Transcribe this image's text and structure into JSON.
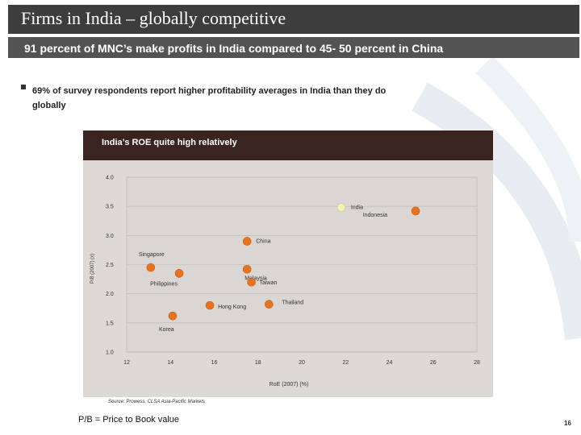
{
  "slide": {
    "title": "Firms in India – globally competitive",
    "subtitle": "91 percent of MNC’s make profits in India compared to 45- 50 percent in China",
    "bullet": "69% of survey respondents report higher profitability averages in India than they do globally",
    "footnote": "P/B = Price to Book value",
    "page_number": "16",
    "source": "Source: Prowess, CLSA Asia-Pacific Markets"
  },
  "colors": {
    "marker": "#e8731f",
    "marker_highlight": "#f3f0b8",
    "header_bg": "#3a2420",
    "panel_bg": "#dcd9d6"
  },
  "chart_data": {
    "type": "scatter",
    "title": "India’s ROE quite high relatively",
    "xlabel": "RoE (2007) (%)",
    "ylabel": "P/B (2007) (x)",
    "xlim": [
      12,
      28
    ],
    "ylim": [
      1.0,
      4.0
    ],
    "x_ticks": [
      "12",
      "14",
      "16",
      "18",
      "20",
      "22",
      "24",
      "26",
      "28"
    ],
    "y_ticks": [
      "1.0",
      "1.5",
      "2.0",
      "2.5",
      "3.0",
      "3.5",
      "4.0"
    ],
    "points": [
      {
        "name": "India",
        "x": 21.8,
        "y": 3.48,
        "highlight": true
      },
      {
        "name": "Indonesia",
        "x": 25.2,
        "y": 3.42,
        "highlight": false
      },
      {
        "name": "China",
        "x": 17.5,
        "y": 2.9,
        "highlight": false
      },
      {
        "name": "Singapore",
        "x": 13.1,
        "y": 2.45,
        "highlight": false
      },
      {
        "name": "Philippines",
        "x": 14.4,
        "y": 2.35,
        "highlight": false
      },
      {
        "name": "Malaysia",
        "x": 17.5,
        "y": 2.42,
        "highlight": false
      },
      {
        "name": "Taiwan",
        "x": 17.7,
        "y": 2.2,
        "highlight": false
      },
      {
        "name": "Hong Kong",
        "x": 15.8,
        "y": 1.8,
        "highlight": false
      },
      {
        "name": "Thailand",
        "x": 18.5,
        "y": 1.82,
        "highlight": false
      },
      {
        "name": "Korea",
        "x": 14.1,
        "y": 1.62,
        "highlight": false
      }
    ]
  }
}
